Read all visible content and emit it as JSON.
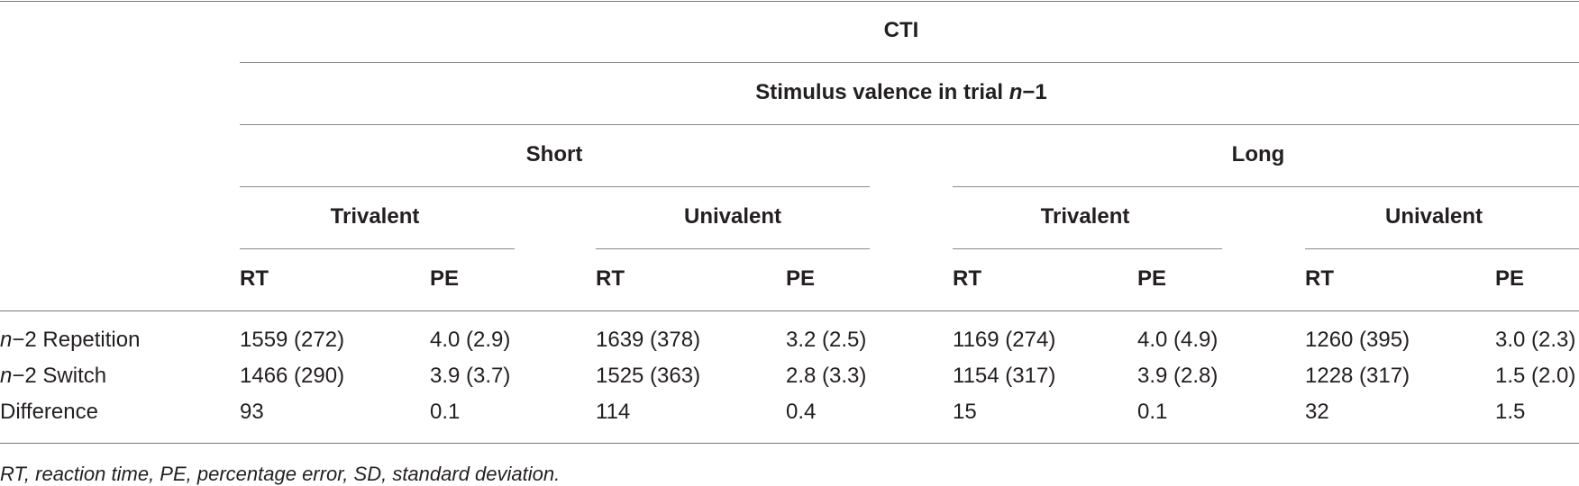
{
  "table": {
    "header": {
      "cti": "CTI",
      "valence_prefix": "Stimulus valence in trial ",
      "valence_n": "n",
      "valence_suffix": "−1",
      "short": "Short",
      "long": "Long",
      "short_trivalent": "Trivalent",
      "short_univalent": "Univalent",
      "long_trivalent": "Trivalent",
      "long_univalent": "Univalent",
      "columns": [
        "RT",
        "PE",
        "RT",
        "PE",
        "RT",
        "PE",
        "RT",
        "PE"
      ]
    },
    "rows": [
      {
        "label_n": "n",
        "label_rest": "−2 Repetition",
        "cells": [
          "1559 (272)",
          "4.0 (2.9)",
          "1639 (378)",
          "3.2 (2.5)",
          "1169 (274)",
          "4.0 (4.9)",
          "1260 (395)",
          "3.0 (2.3)"
        ]
      },
      {
        "label_n": "n",
        "label_rest": "−2 Switch",
        "cells": [
          "1466 (290)",
          "3.9 (3.7)",
          "1525 (363)",
          "2.8 (3.3)",
          "1154 (317)",
          "3.9 (2.8)",
          "1228 (317)",
          "1.5 (2.0)"
        ]
      },
      {
        "label_n": "",
        "label_rest": "Difference",
        "cells": [
          "93",
          "0.1",
          "114",
          "0.4",
          "15",
          "0.1",
          "32",
          "1.5"
        ]
      }
    ],
    "footnote": "RT, reaction time, PE, percentage error, SD, standard deviation."
  }
}
